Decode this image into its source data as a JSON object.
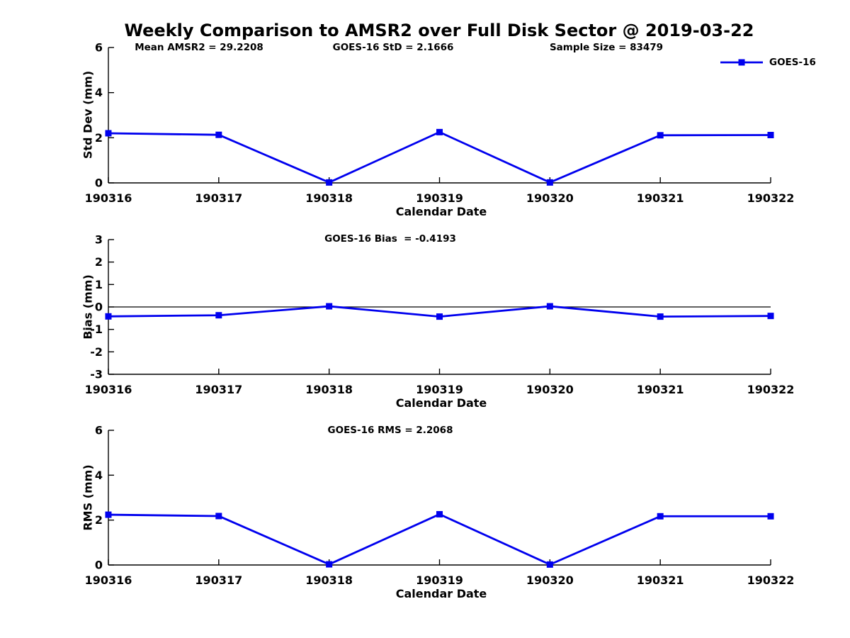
{
  "figure": {
    "title": "Weekly Comparison to AMSR2 over Full Disk Sector @ 2019-03-22",
    "annotations": [
      "Mean AMSR2 = 29.2208",
      "GOES-16 StD = 2.1666",
      "Sample Size = 83479"
    ],
    "legend": {
      "label": "GOES-16",
      "position": "top-right"
    },
    "line_color": "#0000EE",
    "axis_color": "#000000",
    "background_color": "#ffffff"
  },
  "chart_data": [
    {
      "type": "line",
      "title": "",
      "xlabel": "Calendar Date",
      "ylabel": "Std Dev (mm)",
      "ylim": [
        0,
        6
      ],
      "yticks": [
        0,
        2,
        4,
        6
      ],
      "grid": false,
      "zero_line": false,
      "x": [
        "190316",
        "190317",
        "190318",
        "190319",
        "190320",
        "190321",
        "190322"
      ],
      "series": [
        {
          "name": "GOES-16",
          "values": [
            2.2,
            2.13,
            0.02,
            2.25,
            0.02,
            2.11,
            2.12
          ]
        }
      ]
    },
    {
      "type": "line",
      "title": "GOES-16 Bias  = -0.4193",
      "xlabel": "Calendar Date",
      "ylabel": "Bias (mm)",
      "ylim": [
        -3,
        3
      ],
      "yticks": [
        -3,
        -2,
        -1,
        0,
        1,
        2,
        3
      ],
      "grid": false,
      "zero_line": true,
      "x": [
        "190316",
        "190317",
        "190318",
        "190319",
        "190320",
        "190321",
        "190322"
      ],
      "series": [
        {
          "name": "GOES-16",
          "values": [
            -0.42,
            -0.37,
            0.03,
            -0.43,
            0.03,
            -0.43,
            -0.4
          ]
        }
      ]
    },
    {
      "type": "line",
      "title": "GOES-16 RMS = 2.2068",
      "xlabel": "Calendar Date",
      "ylabel": "RMS (mm)",
      "ylim": [
        0,
        6
      ],
      "yticks": [
        0,
        2,
        4,
        6
      ],
      "grid": false,
      "zero_line": false,
      "x": [
        "190316",
        "190317",
        "190318",
        "190319",
        "190320",
        "190321",
        "190322"
      ],
      "series": [
        {
          "name": "GOES-16",
          "values": [
            2.24,
            2.18,
            0.03,
            2.26,
            0.02,
            2.17,
            2.17
          ]
        }
      ]
    }
  ]
}
